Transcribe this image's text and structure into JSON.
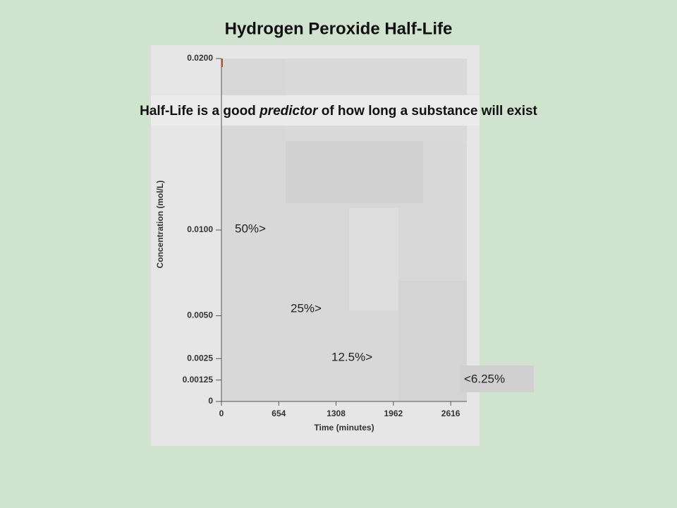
{
  "chart_data": {
    "type": "line",
    "title": "Hydrogen Peroxide Half-Life",
    "subtitle": {
      "before": "Half-Life is a good",
      "emphasis": "predictor",
      "after": "of how long a substance will exist"
    },
    "x_label": "Time (minutes)",
    "y_label": "Concentration (mol/L)",
    "xlim": [
      0,
      2800
    ],
    "xticks": [
      0,
      654,
      1308,
      1962,
      2616
    ],
    "ylim": [
      0,
      0.02
    ],
    "yticks": [
      0,
      {
        "value": 0.00125,
        "label": "0.00125"
      },
      {
        "value": 0.0025,
        "label": "0.0025"
      },
      {
        "value": 0.005,
        "label": "0.0050"
      },
      {
        "value": 0.01,
        "label": "0.0100"
      },
      {
        "value": 0.02,
        "label": "0.0200"
      }
    ],
    "annotations": [
      "50%>",
      "25%>",
      "12.5%>",
      "<6.25%"
    ]
  }
}
